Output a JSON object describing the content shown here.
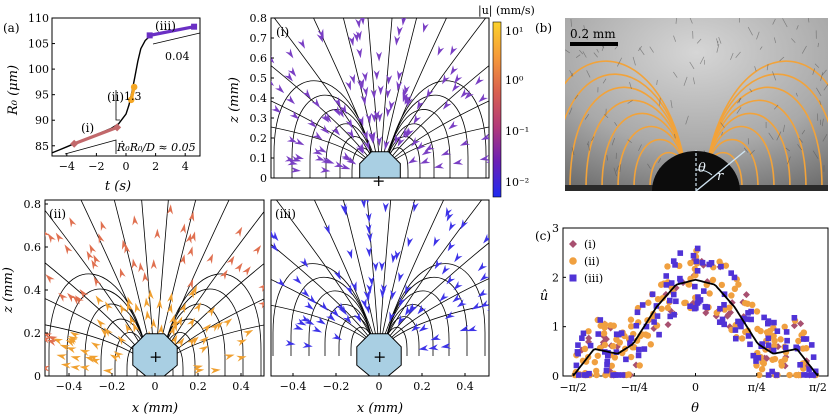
{
  "figure": {
    "panel_labels": {
      "a": "(a)",
      "b": "(b)",
      "c": "(c)",
      "i": "(i)",
      "ii": "(ii)",
      "iii": "(iii)"
    },
    "colorbar": {
      "label": "|u| (mm/s)",
      "ticks": [
        "10¹",
        "10⁰",
        "10⁻¹",
        "10⁻²"
      ],
      "colors": [
        "#fbd12a",
        "#f59a3a",
        "#d9604f",
        "#b23a7a",
        "#6a1fb6",
        "#1f2bf0"
      ]
    },
    "photo": {
      "scalebar_label": "0.2 mm",
      "theta_label": "θ",
      "r_label": "r"
    },
    "stream_axes": {
      "xlabel": "x (mm)",
      "zlabel": "z (mm)",
      "xticks": [
        "−0.4",
        "−0.2",
        "0",
        "0.2",
        "0.4"
      ],
      "zticks_top": [
        "0",
        "0.1",
        "0.2",
        "0.3",
        "0.4",
        "0.5",
        "0.6",
        "0.7",
        "0.8"
      ],
      "zticks_bottom": [
        "0",
        "0.2",
        "0.4",
        "0.6",
        "0.8"
      ],
      "colors": {
        "i": "#7a3fc4",
        "ii": "#f0a030",
        "iii": "#3d33e8",
        "outer_ii": "#e07050"
      }
    },
    "annotations": {
      "slope_ii": "1.3",
      "slope_iii": "0.04",
      "slope_i": "Ṙ₀R₀/D ≈ 0.05"
    }
  },
  "chart_data": [
    {
      "type": "line",
      "title": "(a)",
      "xlabel": "t (s)",
      "ylabel": "R₀ (μm)",
      "xlim": [
        -5,
        5
      ],
      "ylim": [
        83,
        110
      ],
      "xticks": [
        "−4",
        "−2",
        "0",
        "2",
        "4"
      ],
      "yticks": [
        "85",
        "90",
        "95",
        "100",
        "105",
        "110"
      ],
      "x": [
        -5,
        -4.5,
        -4,
        -3.5,
        -3,
        -2.5,
        -2,
        -1.5,
        -1,
        -0.5,
        0,
        0.2,
        0.4,
        0.6,
        0.8,
        1.0,
        1.3,
        1.6,
        2,
        2.5,
        3,
        3.5,
        4,
        4.5
      ],
      "values": [
        83.6,
        84.2,
        84.8,
        85.4,
        86.0,
        86.6,
        87.2,
        87.8,
        88.4,
        89.3,
        91.2,
        93.0,
        95.5,
        98.5,
        101.5,
        104.0,
        105.6,
        106.4,
        106.8,
        107.1,
        107.4,
        107.7,
        108.0,
        108.3
      ],
      "segments": [
        {
          "name": "(i)",
          "color": "#c2686b",
          "x": [
            -3.5,
            -0.6
          ],
          "y": [
            85.4,
            88.6
          ]
        },
        {
          "name": "(ii)",
          "color": "#f5a623",
          "x": [
            0.35,
            0.55
          ],
          "y": [
            94.0,
            96.5
          ]
        },
        {
          "name": "(iii)",
          "color": "#6a2fc4",
          "x": [
            1.6,
            4.6
          ],
          "y": [
            106.6,
            108.3
          ]
        }
      ]
    },
    {
      "type": "scatter",
      "title": "(c)",
      "xlabel": "θ",
      "ylabel": "û",
      "xlim": [
        -1.7,
        1.7
      ],
      "ylim": [
        0,
        3
      ],
      "xticks": [
        "−π/2",
        "−π/4",
        "0",
        "π/4",
        "π/2"
      ],
      "yticks": [
        "0",
        "1",
        "2",
        "3"
      ],
      "series": [
        {
          "name": "(i)",
          "marker": "diamond",
          "color": "#a85070"
        },
        {
          "name": "(ii)",
          "marker": "circle",
          "color": "#f0a040"
        },
        {
          "name": "(iii)",
          "marker": "square",
          "color": "#5033d6"
        }
      ],
      "fit": {
        "name": "fit",
        "theta": [
          -1.5708,
          -1.3,
          -1.0,
          -0.8,
          -0.5,
          -0.25,
          0,
          0.25,
          0.5,
          0.8,
          1.0,
          1.3,
          1.5708
        ],
        "values": [
          0,
          0.55,
          0.45,
          0.65,
          1.4,
          1.85,
          1.95,
          1.85,
          1.4,
          0.65,
          0.45,
          0.55,
          0
        ]
      }
    }
  ]
}
